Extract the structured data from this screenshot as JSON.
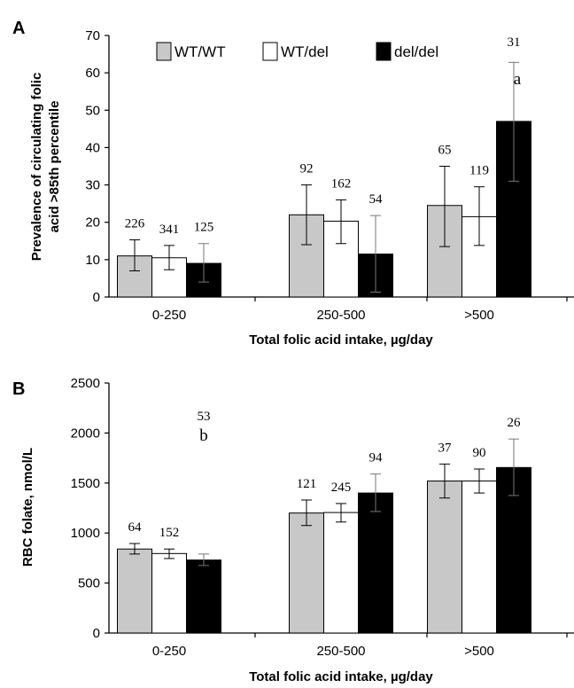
{
  "chart_data": [
    {
      "panel": "A",
      "type": "bar",
      "xlabel": "Total folic acid intake, µg/day",
      "ylabel": "Prevalence of circulating folic acid >85th percentile",
      "ylim": [
        0,
        70
      ],
      "yticks": [
        0,
        10,
        20,
        30,
        40,
        50,
        60,
        70
      ],
      "grid": false,
      "legend_position": "top",
      "categories": [
        "0-250",
        "250-500",
        ">500"
      ],
      "series": [
        {
          "name": "WT/WT",
          "color": "#c8c8c8",
          "values": [
            11,
            22,
            24.5
          ],
          "err_low": [
            7,
            14,
            13.5
          ],
          "err_high": [
            15.3,
            30,
            35
          ],
          "n": [
            "226",
            "92",
            "65"
          ]
        },
        {
          "name": "WT/del",
          "color": "#ffffff",
          "values": [
            10.5,
            20.3,
            21.5
          ],
          "err_low": [
            7.3,
            14.3,
            13.8
          ],
          "err_high": [
            13.8,
            26,
            29.5
          ],
          "n": [
            "341",
            "162",
            "119"
          ]
        },
        {
          "name": "del/del",
          "color": "#000000",
          "values": [
            9,
            11.5,
            47
          ],
          "err_low": [
            4,
            1.3,
            31
          ],
          "err_high": [
            14.3,
            21.8,
            62.8
          ],
          "n": [
            "125",
            "54",
            "31"
          ]
        }
      ],
      "annotations": [
        {
          "text": "a",
          "category": ">500",
          "series": "del/del"
        }
      ]
    },
    {
      "panel": "B",
      "type": "bar",
      "xlabel": "Total folic acid intake, µg/day",
      "ylabel": "RBC folate, nmol/L",
      "ylim": [
        0,
        2500
      ],
      "yticks": [
        0,
        500,
        1000,
        1500,
        2000,
        2500
      ],
      "grid": false,
      "categories": [
        "0-250",
        "250-500",
        ">500"
      ],
      "series": [
        {
          "name": "WT/WT",
          "color": "#c8c8c8",
          "values": [
            840,
            1200,
            1520
          ],
          "err_low": [
            790,
            1075,
            1350
          ],
          "err_high": [
            895,
            1330,
            1690
          ],
          "n": [
            "64",
            "121",
            "37"
          ]
        },
        {
          "name": "WT/del",
          "color": "#ffffff",
          "values": [
            795,
            1205,
            1520
          ],
          "err_low": [
            745,
            1110,
            1400
          ],
          "err_high": [
            840,
            1295,
            1640
          ],
          "n": [
            "152",
            "245",
            "90"
          ]
        },
        {
          "name": "del/del",
          "color": "#000000",
          "values": [
            730,
            1400,
            1655
          ],
          "err_low": [
            675,
            1215,
            1375
          ],
          "err_high": [
            790,
            1590,
            1940
          ],
          "n": [
            "53",
            "94",
            "26"
          ]
        }
      ],
      "annotations": [
        {
          "text": "b",
          "category": "0-250",
          "series": "del/del"
        }
      ]
    }
  ]
}
